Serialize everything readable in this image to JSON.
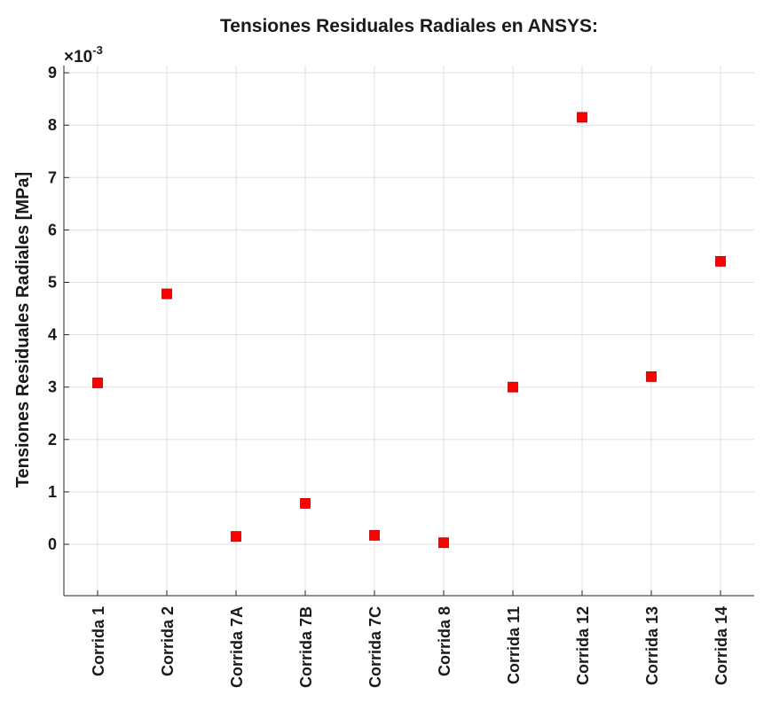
{
  "chart_data": {
    "type": "scatter",
    "title": "Tensiones Residuales Radiales en ANSYS:",
    "xlabel": "",
    "ylabel": "Tensiones Residuales Radiales [MPa]",
    "exponent_prefix": "×10",
    "exponent_power": "-3",
    "categories": [
      "Corrida 1",
      "Corrida 2",
      "Corrida 7A",
      "Corrida 7B",
      "Corrida 7C",
      "Corrida 8",
      "Corrida 11",
      "Corrida 12",
      "Corrida 13",
      "Corrida 14"
    ],
    "series": [
      {
        "values": [
          0.00308,
          0.00478,
          0.00015,
          0.00078,
          0.00017,
          3e-05,
          0.003,
          0.00815,
          0.0032,
          0.0054
        ]
      }
    ],
    "yticks": [
      0,
      1,
      2,
      3,
      4,
      5,
      6,
      7,
      8,
      9
    ],
    "yticks_scaled_min": -0.00095,
    "ylim": [
      -0.00095,
      0.0091
    ],
    "grid": true,
    "marker": "square",
    "colors": {
      "marker": "#ff0000",
      "marker_edge": "#b00000",
      "grid": "#dfdfdf",
      "axis": "#262626"
    }
  }
}
